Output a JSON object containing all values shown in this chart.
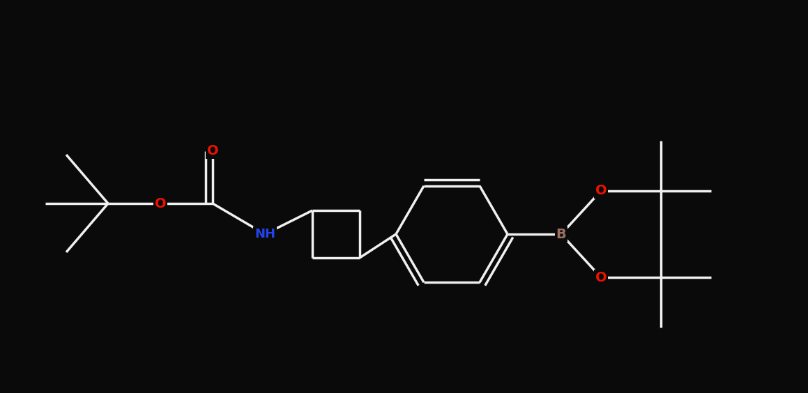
{
  "bg": "#0a0a0a",
  "bond_color": "#f0f0f0",
  "O_color": "#ee1100",
  "N_color": "#2244ee",
  "B_color": "#9b7060",
  "lw": 2.5,
  "fig_w": 11.59,
  "fig_h": 5.64,
  "dpi": 100,
  "xlim": [
    0,
    11.59
  ],
  "ylim": [
    0,
    5.64
  ]
}
